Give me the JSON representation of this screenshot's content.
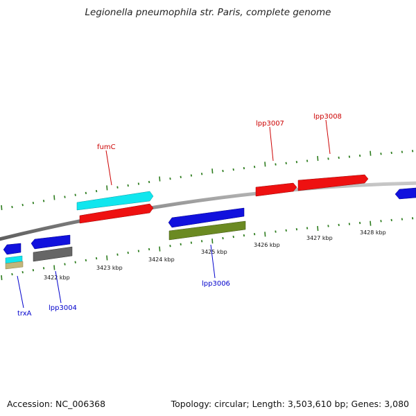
{
  "title": "Legionella pneumophila str. Paris, complete genome",
  "footer": {
    "accession": "Accession: NC_006368",
    "summary": "Topology: circular; Length: 3,503,610 bp; Genes: 3,080"
  },
  "colors": {
    "backbone": "#8a8a8a",
    "tick": "#2e7d1f",
    "forward_label": "#cc0000",
    "reverse_label": "#0000cc",
    "red": "#ee1111",
    "blue": "#1111dd",
    "cyan": "#11e6ee",
    "olive": "#6b8a22",
    "gray": "#666666",
    "khaki": "#c2b67a"
  },
  "scale_labels": [
    "3422 kbp",
    "3423 kbp",
    "3424 kbp",
    "3425 kbp",
    "3426 kbp",
    "3427 kbp",
    "3428 kbp"
  ],
  "gene_labels": {
    "forward": [
      "fumC",
      "lpp3007",
      "lpp3008"
    ],
    "reverse": [
      "trxA",
      "lpp3004",
      "lpp3006"
    ]
  }
}
